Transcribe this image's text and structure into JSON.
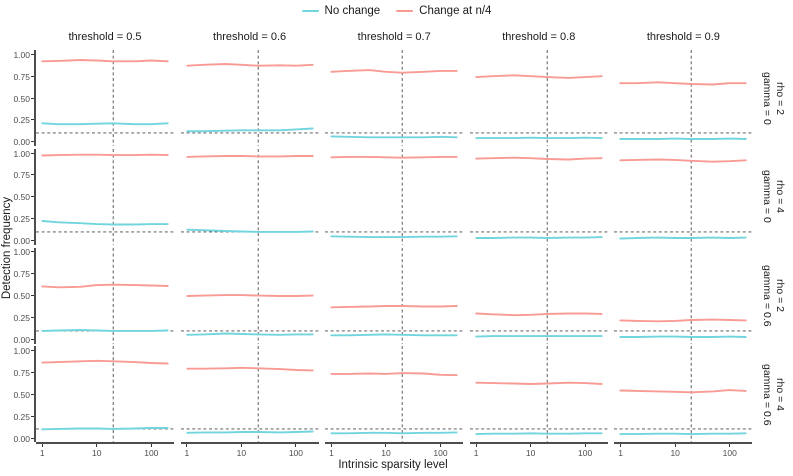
{
  "chart_data": {
    "type": "line",
    "title": "",
    "xlabel": "Intrinsic sparsity level",
    "ylabel": "Detection frequency",
    "xscale": "log",
    "xticks": [
      "1",
      "10",
      "100"
    ],
    "yticks": [
      "1.00",
      "0.75",
      "0.50",
      "0.25",
      "0.00"
    ],
    "ytick_values": [
      1.0,
      0.75,
      0.5,
      0.25,
      0.0
    ],
    "xlim": [
      1,
      200
    ],
    "ylim": [
      0,
      1
    ],
    "vline_x": 20,
    "hline_y": 0.1,
    "legend": [
      {
        "label": "No change",
        "color": "#72d5de"
      },
      {
        "label": "Change at n/4",
        "color": "#f89b94"
      }
    ],
    "facet_col_labels": [
      "threshold = 0.5",
      "threshold = 0.6",
      "threshold = 0.7",
      "threshold = 0.8",
      "threshold = 0.9"
    ],
    "facet_row_labels": [
      [
        "gamma = 0",
        "rho = 2"
      ],
      [
        "gamma = 0",
        "rho = 4"
      ],
      [
        "gamma = 0.6",
        "rho = 2"
      ],
      [
        "gamma = 0.6",
        "rho = 4"
      ]
    ],
    "x": [
      1,
      2,
      5,
      10,
      20,
      50,
      100,
      200
    ],
    "rows": [
      {
        "cols": [
          {
            "change": [
              0.92,
              0.925,
              0.935,
              0.93,
              0.92,
              0.92,
              0.93,
              0.92
            ],
            "no_change": [
              0.21,
              0.2,
              0.2,
              0.205,
              0.21,
              0.2,
              0.2,
              0.21
            ]
          },
          {
            "change": [
              0.87,
              0.88,
              0.89,
              0.88,
              0.87,
              0.875,
              0.87,
              0.88
            ],
            "no_change": [
              0.12,
              0.12,
              0.125,
              0.13,
              0.13,
              0.13,
              0.14,
              0.15
            ]
          },
          {
            "change": [
              0.8,
              0.81,
              0.82,
              0.8,
              0.79,
              0.8,
              0.81,
              0.81
            ],
            "no_change": [
              0.06,
              0.055,
              0.05,
              0.05,
              0.05,
              0.05,
              0.055,
              0.05
            ]
          },
          {
            "change": [
              0.74,
              0.75,
              0.76,
              0.75,
              0.74,
              0.73,
              0.74,
              0.75
            ],
            "no_change": [
              0.04,
              0.04,
              0.04,
              0.045,
              0.04,
              0.04,
              0.045,
              0.04
            ]
          },
          {
            "change": [
              0.67,
              0.67,
              0.68,
              0.67,
              0.66,
              0.655,
              0.67,
              0.67
            ],
            "no_change": [
              0.03,
              0.03,
              0.03,
              0.035,
              0.03,
              0.03,
              0.035,
              0.03
            ]
          }
        ]
      },
      {
        "cols": [
          {
            "change": [
              0.975,
              0.98,
              0.985,
              0.985,
              0.98,
              0.98,
              0.985,
              0.98
            ],
            "no_change": [
              0.225,
              0.21,
              0.2,
              0.19,
              0.185,
              0.185,
              0.19,
              0.19
            ]
          },
          {
            "change": [
              0.96,
              0.965,
              0.97,
              0.97,
              0.965,
              0.965,
              0.97,
              0.97
            ],
            "no_change": [
              0.125,
              0.12,
              0.11,
              0.105,
              0.1,
              0.1,
              0.1,
              0.105
            ]
          },
          {
            "change": [
              0.955,
              0.96,
              0.96,
              0.955,
              0.95,
              0.955,
              0.96,
              0.96
            ],
            "no_change": [
              0.05,
              0.045,
              0.04,
              0.04,
              0.04,
              0.045,
              0.045,
              0.05
            ]
          },
          {
            "change": [
              0.94,
              0.945,
              0.95,
              0.945,
              0.935,
              0.93,
              0.94,
              0.945
            ],
            "no_change": [
              0.03,
              0.03,
              0.035,
              0.035,
              0.03,
              0.035,
              0.035,
              0.04
            ]
          },
          {
            "change": [
              0.92,
              0.925,
              0.93,
              0.925,
              0.915,
              0.905,
              0.91,
              0.92
            ],
            "no_change": [
              0.025,
              0.03,
              0.035,
              0.03,
              0.03,
              0.035,
              0.03,
              0.035
            ]
          }
        ]
      },
      {
        "cols": [
          {
            "change": [
              0.61,
              0.6,
              0.605,
              0.625,
              0.63,
              0.625,
              0.62,
              0.615
            ],
            "no_change": [
              0.1,
              0.105,
              0.11,
              0.105,
              0.1,
              0.1,
              0.1,
              0.105
            ]
          },
          {
            "change": [
              0.5,
              0.505,
              0.51,
              0.51,
              0.505,
              0.5,
              0.5,
              0.505
            ],
            "no_change": [
              0.055,
              0.06,
              0.07,
              0.065,
              0.06,
              0.055,
              0.06,
              0.06
            ]
          },
          {
            "change": [
              0.37,
              0.375,
              0.38,
              0.385,
              0.385,
              0.38,
              0.38,
              0.385
            ],
            "no_change": [
              0.05,
              0.05,
              0.055,
              0.06,
              0.055,
              0.05,
              0.05,
              0.05
            ]
          },
          {
            "change": [
              0.3,
              0.29,
              0.28,
              0.285,
              0.295,
              0.3,
              0.3,
              0.295
            ],
            "no_change": [
              0.035,
              0.04,
              0.04,
              0.04,
              0.04,
              0.04,
              0.04,
              0.04
            ]
          },
          {
            "change": [
              0.22,
              0.215,
              0.21,
              0.215,
              0.225,
              0.23,
              0.225,
              0.22
            ],
            "no_change": [
              0.03,
              0.03,
              0.035,
              0.035,
              0.03,
              0.03,
              0.035,
              0.03
            ]
          }
        ]
      },
      {
        "cols": [
          {
            "change": [
              0.86,
              0.865,
              0.875,
              0.88,
              0.875,
              0.865,
              0.855,
              0.85
            ],
            "no_change": [
              0.095,
              0.1,
              0.105,
              0.105,
              0.1,
              0.105,
              0.11,
              0.11
            ]
          },
          {
            "change": [
              0.79,
              0.79,
              0.795,
              0.8,
              0.795,
              0.785,
              0.775,
              0.77
            ],
            "no_change": [
              0.055,
              0.06,
              0.06,
              0.065,
              0.065,
              0.06,
              0.065,
              0.07
            ]
          },
          {
            "change": [
              0.73,
              0.73,
              0.735,
              0.73,
              0.74,
              0.735,
              0.72,
              0.715
            ],
            "no_change": [
              0.05,
              0.05,
              0.055,
              0.055,
              0.05,
              0.055,
              0.055,
              0.06
            ]
          },
          {
            "change": [
              0.63,
              0.625,
              0.62,
              0.615,
              0.62,
              0.63,
              0.625,
              0.615
            ],
            "no_change": [
              0.04,
              0.045,
              0.045,
              0.05,
              0.045,
              0.045,
              0.05,
              0.05
            ]
          },
          {
            "change": [
              0.54,
              0.535,
              0.53,
              0.525,
              0.52,
              0.53,
              0.545,
              0.535
            ],
            "no_change": [
              0.04,
              0.04,
              0.045,
              0.045,
              0.04,
              0.045,
              0.045,
              0.05
            ]
          }
        ]
      }
    ],
    "style": {
      "dash_color": "#4a4a4a",
      "axis_color": "#4d4d4d",
      "tick_text_color": "#4d4d4d"
    }
  }
}
